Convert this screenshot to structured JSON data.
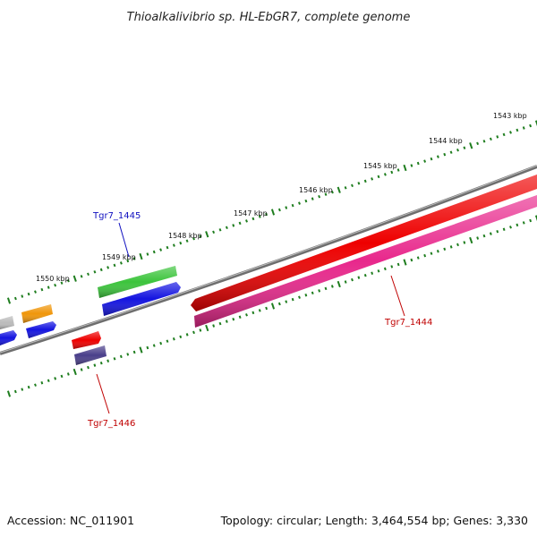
{
  "title": "Thioalkalivibrio sp. HL-EbGR7, complete genome",
  "footer": {
    "accession": "Accession: NC_011901",
    "summary": "Topology: circular; Length: 3,464,554 bp; Genes: 3,330"
  },
  "colors": {
    "backbone": "#7a7a7a",
    "ticks": "#1e7d1e",
    "label_blue": "#1010c0",
    "label_red": "#c00000"
  },
  "scale": {
    "unit": "kbp",
    "ticks": [
      {
        "label": "1543 kbp"
      },
      {
        "label": "1544 kbp"
      },
      {
        "label": "1545 kbp"
      },
      {
        "label": "1546 kbp"
      },
      {
        "label": "1547 kbp"
      },
      {
        "label": "1548 kbp"
      },
      {
        "label": "1549 kbp"
      },
      {
        "label": "1550 kbp"
      }
    ]
  },
  "genes": {
    "tgr7_1445": {
      "label": "Tgr7_1445",
      "color": "#3cc43c",
      "strand": "forward"
    },
    "tgr7_1444": {
      "label": "Tgr7_1444",
      "color": "#ee0000",
      "strand": "reverse"
    },
    "tgr7_1444_cds": {
      "color": "#e8288c",
      "strand": "reverse"
    },
    "tgr7_1446": {
      "label": "Tgr7_1446",
      "color": "#ee0000",
      "strand": "forward"
    },
    "tgr7_1446_cds": {
      "color": "#4a3f8a",
      "strand": "forward"
    },
    "cds_blue_1445": {
      "color": "#1414e0",
      "strand": "forward"
    },
    "orange_gene": {
      "color": "#f0960a",
      "strand": "forward"
    },
    "blue_gene_left": {
      "color": "#1414e0",
      "strand": "forward"
    },
    "blue_gene_edge": {
      "color": "#1414e0",
      "strand": "forward"
    },
    "grey_gene_edge": {
      "color": "#bbbbbb",
      "strand": "forward"
    }
  }
}
